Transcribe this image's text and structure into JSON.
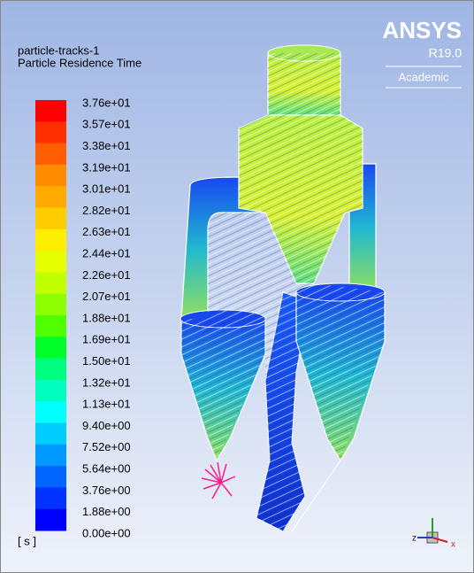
{
  "legend": {
    "title": "particle-tracks-1",
    "subtitle": "Particle Residence Time",
    "labels": [
      "3.76e+01",
      "3.57e+01",
      "3.38e+01",
      "3.19e+01",
      "3.01e+01",
      "2.82e+01",
      "2.63e+01",
      "2.44e+01",
      "2.26e+01",
      "2.07e+01",
      "1.88e+01",
      "1.69e+01",
      "1.50e+01",
      "1.32e+01",
      "1.13e+01",
      "9.40e+00",
      "7.52e+00",
      "5.64e+00",
      "3.76e+00",
      "1.88e+00",
      "0.00e+00"
    ],
    "unit": "[ s ]"
  },
  "logo": {
    "name": "ANSYS",
    "version": "R19.0",
    "edition": "Academic"
  },
  "triad": {
    "left": "z",
    "right": "x"
  }
}
